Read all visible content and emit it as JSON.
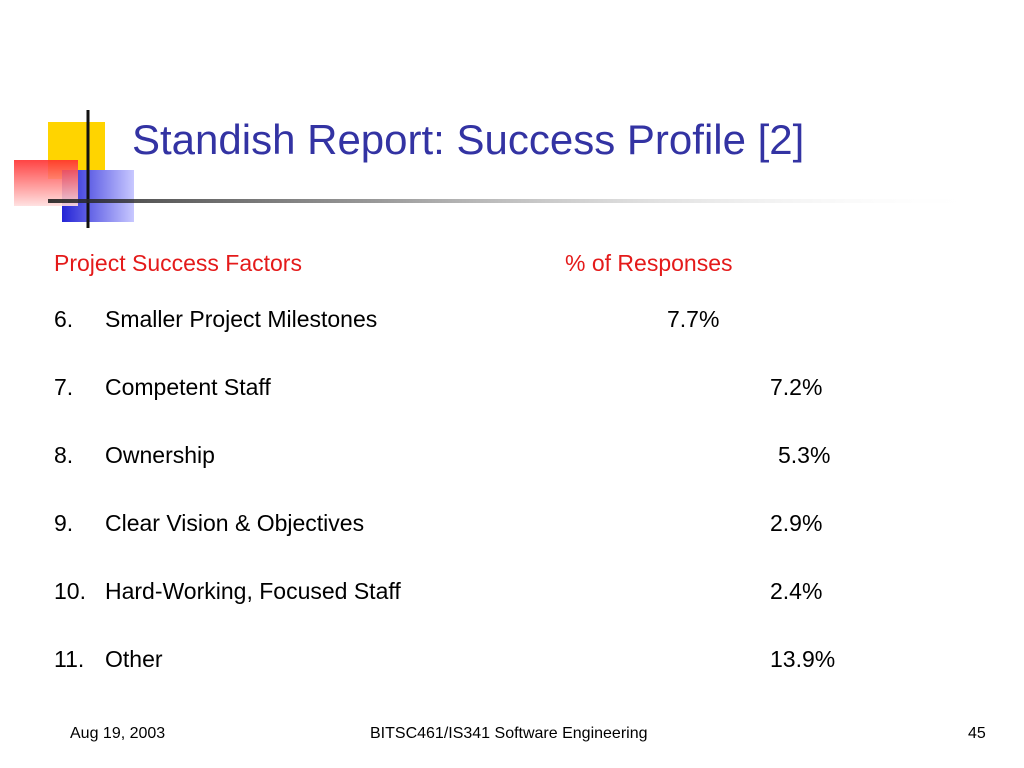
{
  "slide": {
    "title": "Standish Report: Success Profile [2]",
    "header": {
      "factors_label": "Project Success Factors",
      "percent_label": "% of Responses"
    },
    "items": [
      {
        "number": "6.",
        "label": "Smaller Project Milestones",
        "percent": "7.7%"
      },
      {
        "number": "7.",
        "label": "Competent Staff",
        "percent": "7.2%"
      },
      {
        "number": "8.",
        "label": "Ownership",
        "percent": "5.3%"
      },
      {
        "number": "9.",
        "label": "Clear Vision & Objectives",
        "percent": "2.9%"
      },
      {
        "number": "10.",
        "label": "Hard-Working, Focused Staff",
        "percent": "2.4%"
      },
      {
        "number": "11.",
        "label": "Other",
        "percent": "13.9%"
      }
    ]
  },
  "footer": {
    "date": "Aug 19, 2003",
    "course": "BITSC461/IS341 Software Engineering",
    "page_number": "45"
  },
  "colors": {
    "title": "#3333a3",
    "header_text": "#e41a1a",
    "accent_yellow": "#ffd400",
    "accent_red": "#ff3b3b",
    "accent_blue": "#2a2ad8"
  }
}
